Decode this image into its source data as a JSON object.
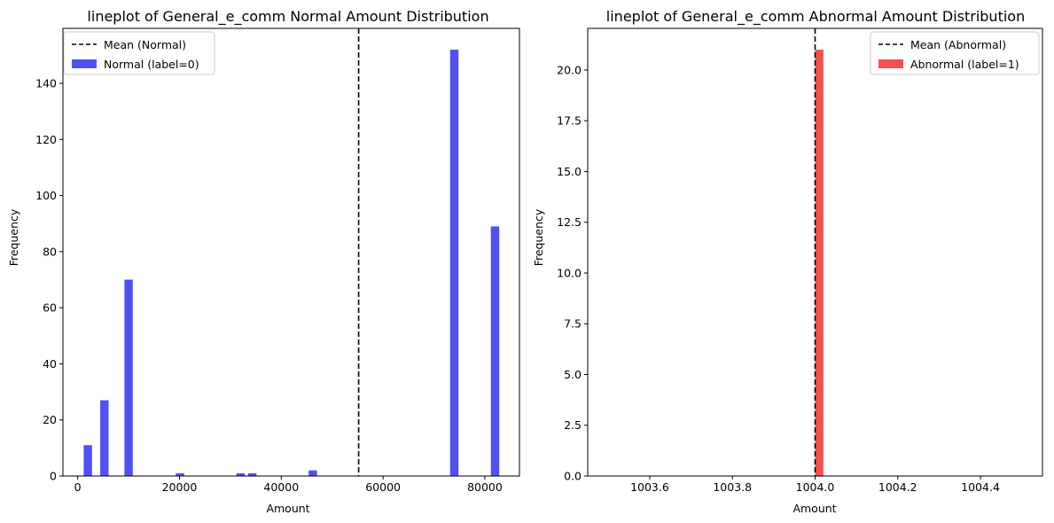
{
  "chart_data": [
    {
      "type": "bar",
      "title": "lineplot of General_e_comm Normal Amount Distribution",
      "xlabel": "Amount",
      "ylabel": "Frequency",
      "xlim": [
        -2900,
        86800
      ],
      "ylim": [
        0,
        159.6
      ],
      "xticks": [
        0,
        20000,
        40000,
        60000,
        80000
      ],
      "xtick_labels": [
        "0",
        "20000",
        "40000",
        "60000",
        "80000"
      ],
      "yticks": [
        0,
        20,
        40,
        60,
        80,
        100,
        120,
        140
      ],
      "ytick_labels": [
        "0",
        "20",
        "40",
        "60",
        "80",
        "100",
        "120",
        "140"
      ],
      "grid": false,
      "legend_position": "top-left",
      "bin_width": 1650,
      "series": [
        {
          "name": "Normal (label=0)",
          "color": "#5050f5",
          "bins": [
            {
              "x": 2000,
              "value": 11
            },
            {
              "x": 5250,
              "value": 27
            },
            {
              "x": 10000,
              "value": 70
            },
            {
              "x": 20100,
              "value": 1
            },
            {
              "x": 32000,
              "value": 1
            },
            {
              "x": 34300,
              "value": 1
            },
            {
              "x": 46200,
              "value": 2
            },
            {
              "x": 74000,
              "value": 152
            },
            {
              "x": 82000,
              "value": 89
            }
          ]
        }
      ],
      "mean_line": {
        "name": "Mean (Normal)",
        "x": 55200,
        "color": "#000000"
      }
    },
    {
      "type": "bar",
      "title": "lineplot of General_e_comm Abnormal Amount Distribution",
      "xlabel": "Amount",
      "ylabel": "Frequency",
      "xlim": [
        1003.45,
        1004.55
      ],
      "ylim": [
        0,
        22.05
      ],
      "xticks": [
        1003.6,
        1003.8,
        1004.0,
        1004.2,
        1004.4
      ],
      "xtick_labels": [
        "1003.6",
        "1003.8",
        "1004.0",
        "1004.2",
        "1004.4"
      ],
      "yticks": [
        0,
        2.5,
        5,
        7.5,
        10,
        12.5,
        15,
        17.5,
        20
      ],
      "ytick_labels": [
        "0.0",
        "2.5",
        "5.0",
        "7.5",
        "10.0",
        "12.5",
        "15.0",
        "17.5",
        "20.0"
      ],
      "grid": false,
      "legend_position": "top-right",
      "bin_width": 0.02,
      "series": [
        {
          "name": "Abnormal (label=1)",
          "color": "#f55050",
          "bins": [
            {
              "x": 1004.01,
              "value": 21
            }
          ]
        }
      ],
      "mean_line": {
        "name": "Mean (Abnormal)",
        "x": 1004.0,
        "color": "#000000"
      }
    }
  ]
}
